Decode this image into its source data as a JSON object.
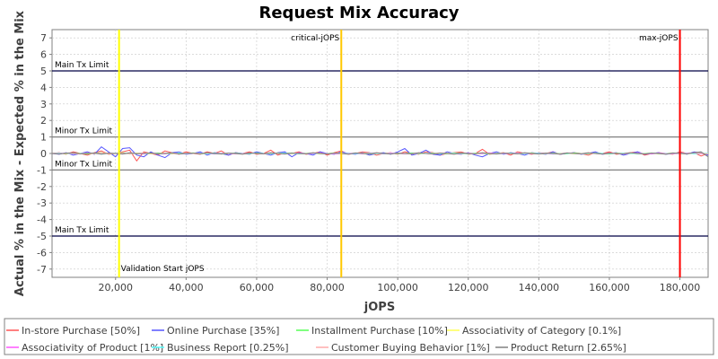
{
  "chart_data": {
    "type": "line",
    "title": "Request Mix Accuracy",
    "xlabel": "jOPS",
    "ylabel": "Actual % in the Mix - Expected % in the Mix",
    "xlim": [
      2000,
      188000
    ],
    "ylim": [
      -7.5,
      7.5
    ],
    "grid": true,
    "legend_position": "bottom",
    "x_ticks": [
      {
        "value": 20000,
        "label": "20,000"
      },
      {
        "value": 40000,
        "label": "40,000"
      },
      {
        "value": 60000,
        "label": "60,000"
      },
      {
        "value": 80000,
        "label": "80,000"
      },
      {
        "value": 100000,
        "label": "100,000"
      },
      {
        "value": 120000,
        "label": "120,000"
      },
      {
        "value": 140000,
        "label": "140,000"
      },
      {
        "value": 160000,
        "label": "160,000"
      },
      {
        "value": 180000,
        "label": "180,000"
      }
    ],
    "y_ticks": [
      {
        "value": 7,
        "label": "7"
      },
      {
        "value": 6,
        "label": "6"
      },
      {
        "value": 5,
        "label": "5"
      },
      {
        "value": 4,
        "label": "4"
      },
      {
        "value": 3,
        "label": "3"
      },
      {
        "value": 2,
        "label": "2"
      },
      {
        "value": 1,
        "label": "1"
      },
      {
        "value": 0,
        "label": "0"
      },
      {
        "value": -1,
        "label": "-1"
      },
      {
        "value": -2,
        "label": "-2"
      },
      {
        "value": -3,
        "label": "-3"
      },
      {
        "value": -4,
        "label": "-4"
      },
      {
        "value": -5,
        "label": "-5"
      },
      {
        "value": -6,
        "label": "-6"
      },
      {
        "value": -7,
        "label": "-7"
      }
    ],
    "horizontal_markers": [
      {
        "y": 5,
        "label": "Main Tx Limit",
        "color": "#000044",
        "label_side": "above"
      },
      {
        "y": 1,
        "label": "Minor Tx Limit",
        "color": "#808080",
        "label_side": "above"
      },
      {
        "y": -1,
        "label": "Minor Tx Limit",
        "color": "#808080",
        "label_side": "above"
      },
      {
        "y": -5,
        "label": "Main Tx Limit",
        "color": "#000044",
        "label_side": "above"
      }
    ],
    "vertical_markers": [
      {
        "x": 21000,
        "label": "Validation Start jOPS",
        "color": "#ffff00",
        "label_pos": "bottom"
      },
      {
        "x": 84000,
        "label": "critical-jOPS",
        "color": "#ffc800",
        "label_pos": "top"
      },
      {
        "x": 180000,
        "label": "max-jOPS",
        "color": "#ff0000",
        "label_pos": "top"
      }
    ],
    "x": [
      2000,
      4000,
      6000,
      8000,
      10000,
      12000,
      14000,
      16000,
      18000,
      20000,
      22000,
      24000,
      26000,
      28000,
      30000,
      32000,
      34000,
      36000,
      38000,
      40000,
      42000,
      44000,
      46000,
      48000,
      50000,
      52000,
      54000,
      56000,
      58000,
      60000,
      62000,
      64000,
      66000,
      68000,
      70000,
      72000,
      74000,
      76000,
      78000,
      80000,
      82000,
      84000,
      86000,
      88000,
      90000,
      92000,
      94000,
      96000,
      98000,
      100000,
      102000,
      104000,
      106000,
      108000,
      110000,
      112000,
      114000,
      116000,
      118000,
      120000,
      122000,
      124000,
      126000,
      128000,
      130000,
      132000,
      134000,
      136000,
      138000,
      140000,
      142000,
      144000,
      146000,
      148000,
      150000,
      152000,
      154000,
      156000,
      158000,
      160000,
      162000,
      164000,
      166000,
      168000,
      170000,
      172000,
      174000,
      176000,
      178000,
      180000,
      182000,
      184000,
      186000,
      188000
    ],
    "series": [
      {
        "name": "In-store Purchase [50%]",
        "color": "#ff5555",
        "values": [
          0.0,
          0.05,
          -0.05,
          0.1,
          0.0,
          -0.1,
          0.05,
          0.15,
          -0.05,
          0.0,
          0.1,
          0.2,
          -0.45,
          0.1,
          0.0,
          -0.1,
          0.15,
          0.05,
          -0.05,
          0.1,
          0.0,
          -0.05,
          0.1,
          0.0,
          0.15,
          -0.1,
          0.05,
          0.0,
          0.1,
          -0.05,
          0.0,
          0.2,
          -0.1,
          0.05,
          0.0,
          0.1,
          -0.05,
          0.0,
          0.1,
          -0.1,
          0.05,
          0.15,
          -0.05,
          0.0,
          0.1,
          0.05,
          -0.1,
          0.0,
          0.05,
          -0.05,
          0.1,
          0.0,
          -0.05,
          0.1,
          0.05,
          -0.1,
          0.0,
          0.05,
          0.1,
          -0.05,
          0.0,
          0.25,
          -0.05,
          0.0,
          0.05,
          -0.1,
          0.1,
          0.0,
          -0.05,
          0.05,
          0.0,
          0.1,
          -0.05,
          0.0,
          0.05,
          0.0,
          -0.1,
          0.05,
          0.0,
          0.1,
          -0.05,
          0.0,
          0.05,
          0.1,
          -0.1,
          0.0,
          0.05,
          0.0,
          -0.05,
          0.1,
          0.0,
          0.05,
          -0.15,
          0.0
        ]
      },
      {
        "name": "Online Purchase [35%]",
        "color": "#5555ff",
        "values": [
          0.0,
          -0.05,
          0.05,
          -0.1,
          0.0,
          0.1,
          -0.05,
          0.4,
          0.1,
          -0.2,
          0.3,
          0.35,
          -0.1,
          -0.2,
          0.1,
          -0.1,
          -0.25,
          0.05,
          0.1,
          -0.05,
          0.0,
          0.1,
          -0.1,
          0.05,
          0.0,
          -0.1,
          0.05,
          0.0,
          -0.05,
          0.1,
          0.0,
          -0.1,
          0.05,
          0.1,
          -0.2,
          0.05,
          0.0,
          -0.1,
          0.1,
          0.0,
          -0.05,
          0.1,
          0.0,
          -0.05,
          0.05,
          -0.1,
          0.0,
          0.05,
          -0.05,
          0.1,
          0.3,
          -0.1,
          0.0,
          0.2,
          -0.05,
          -0.1,
          0.1,
          0.0,
          -0.05,
          0.05,
          -0.1,
          -0.2,
          0.0,
          0.1,
          -0.05,
          0.05,
          0.0,
          -0.1,
          0.05,
          0.0,
          -0.05,
          0.1,
          -0.05,
          0.0,
          0.05,
          -0.05,
          0.0,
          0.1,
          -0.05,
          0.0,
          0.05,
          -0.1,
          0.0,
          0.1,
          -0.05,
          0.0,
          0.05,
          -0.05,
          0.0,
          0.05,
          -0.05,
          0.1,
          0.05,
          -0.1
        ]
      },
      {
        "name": "Installment Purchase [10%]",
        "color": "#55ff55",
        "values": [
          0.0,
          0.02,
          -0.02,
          0.03,
          0.0,
          -0.03,
          0.02,
          0.05,
          -0.02,
          0.0,
          0.05,
          -0.03,
          0.02,
          0.0,
          -0.02,
          0.03,
          0.0,
          -0.02,
          0.02,
          0.0,
          0.03,
          -0.02,
          0.0,
          0.02,
          -0.03,
          0.0,
          0.02,
          0.0,
          -0.02,
          0.03,
          0.0,
          -0.02,
          0.02,
          0.0,
          0.03,
          -0.02,
          0.0,
          0.02,
          -0.02,
          0.0,
          0.03,
          0.0,
          -0.02,
          0.02,
          0.0,
          -0.03,
          0.02,
          0.0,
          0.02,
          -0.02,
          0.0,
          0.03,
          -0.02,
          0.0,
          0.02,
          0.0,
          -0.02,
          0.03,
          0.0,
          -0.02,
          0.02,
          0.0,
          -0.03,
          0.02,
          0.0,
          0.02,
          -0.02,
          0.0,
          0.03,
          -0.02,
          0.0,
          0.02,
          0.0,
          -0.02,
          0.03,
          0.0,
          -0.02,
          0.02,
          0.0,
          -0.03,
          0.02,
          0.0,
          0.02,
          -0.02,
          0.0,
          0.03,
          -0.02,
          0.0,
          0.02,
          0.0,
          -0.02,
          0.03,
          0.0,
          -0.02
        ]
      },
      {
        "name": "Associativity of Category [0.1%]",
        "color": "#ffff55",
        "values": [
          0.0,
          0.01,
          -0.01,
          0.0,
          0.01,
          0.0,
          -0.01,
          0.0,
          0.01,
          0.0,
          -0.01,
          0.0,
          0.01,
          0.0,
          -0.01,
          0.0,
          0.01,
          0.0,
          -0.01,
          0.0,
          0.01,
          0.0,
          -0.01,
          0.0,
          0.01,
          0.0,
          -0.01,
          0.0,
          0.01,
          0.0,
          -0.01,
          0.0,
          0.01,
          0.0,
          -0.01,
          0.0,
          0.01,
          0.0,
          -0.01,
          0.0,
          0.01,
          0.0,
          -0.01,
          0.0,
          0.01,
          0.0,
          -0.01,
          0.0,
          0.01,
          0.0,
          -0.01,
          0.0,
          0.01,
          0.0,
          -0.01,
          0.0,
          0.01,
          0.0,
          -0.01,
          0.0,
          0.01,
          0.0,
          -0.01,
          0.0,
          0.01,
          0.0,
          -0.01,
          0.0,
          0.01,
          0.0,
          -0.01,
          0.0,
          0.01,
          0.0,
          -0.01,
          0.0,
          0.01,
          0.0,
          -0.01,
          0.0,
          0.01,
          0.0,
          -0.01,
          0.0,
          0.01,
          0.0,
          -0.01,
          0.0,
          0.01,
          0.0,
          -0.01,
          0.0,
          0.01,
          0.0
        ]
      },
      {
        "name": "Associativity of Product [1%]",
        "color": "#ff55ff",
        "values": [
          0.0,
          0.02,
          0.0,
          -0.02,
          0.0,
          0.03,
          0.0,
          -0.02,
          0.02,
          0.0,
          -0.03,
          0.02,
          0.0,
          -0.02,
          0.02,
          0.0,
          -0.02,
          0.03,
          0.0,
          -0.02,
          0.0,
          0.02,
          0.0,
          -0.03,
          0.02,
          0.0,
          -0.02,
          0.0,
          0.02,
          0.0,
          -0.02,
          0.03,
          0.0,
          -0.02,
          0.0,
          0.02,
          0.0,
          -0.02,
          0.02,
          0.0,
          -0.03,
          0.0,
          0.02,
          0.0,
          -0.02,
          0.02,
          0.0,
          -0.02,
          0.03,
          0.0,
          -0.02,
          0.0,
          0.02,
          0.0,
          -0.03,
          0.02,
          0.0,
          -0.02,
          0.0,
          0.02,
          0.0,
          -0.02,
          0.03,
          0.0,
          -0.02,
          0.0,
          0.02,
          0.0,
          -0.02,
          0.02,
          0.0,
          -0.03,
          0.0,
          0.02,
          0.0,
          -0.02,
          0.02,
          0.0,
          -0.02,
          0.03,
          0.0,
          -0.02,
          0.0,
          0.02,
          0.0,
          -0.03,
          0.02,
          0.0,
          -0.02,
          0.0,
          0.02,
          0.0,
          -0.02,
          0.0
        ]
      },
      {
        "name": "Business Report [0.25%]",
        "color": "#55ffff",
        "values": [
          0.0,
          0.01,
          0.0,
          -0.01,
          0.0,
          0.01,
          0.0,
          -0.01,
          0.0,
          0.01,
          0.0,
          -0.01,
          0.0,
          0.01,
          0.0,
          -0.01,
          0.0,
          0.01,
          0.0,
          -0.01,
          0.0,
          0.01,
          0.0,
          -0.01,
          0.0,
          0.01,
          0.0,
          -0.01,
          0.0,
          0.01,
          0.0,
          -0.01,
          0.0,
          0.01,
          0.0,
          -0.01,
          0.0,
          0.01,
          0.0,
          -0.01,
          0.0,
          0.01,
          0.0,
          -0.01,
          0.0,
          0.01,
          0.0,
          -0.01,
          0.0,
          0.01,
          0.0,
          -0.01,
          0.0,
          0.01,
          0.0,
          -0.01,
          0.0,
          0.01,
          0.0,
          -0.01,
          0.0,
          0.01,
          0.0,
          -0.01,
          0.0,
          0.01,
          0.0,
          -0.01,
          0.0,
          0.01,
          0.0,
          -0.01,
          0.0,
          0.01,
          0.0,
          -0.01,
          0.0,
          0.01,
          0.0,
          -0.01,
          0.0,
          0.01,
          0.0,
          -0.01,
          0.0,
          0.01,
          0.0,
          -0.01,
          0.0,
          0.01,
          0.0,
          -0.01,
          0.0,
          0.01
        ]
      },
      {
        "name": "Customer Buying Behavior [1%]",
        "color": "#ffaaaa",
        "values": [
          0.0,
          -0.02,
          0.02,
          0.0,
          -0.03,
          0.02,
          0.0,
          0.03,
          -0.02,
          0.0,
          0.02,
          -0.02,
          0.0,
          0.03,
          0.0,
          -0.02,
          0.02,
          0.0,
          -0.03,
          0.02,
          0.0,
          -0.02,
          0.03,
          0.0,
          -0.02,
          0.02,
          0.0,
          -0.03,
          0.02,
          0.0,
          -0.02,
          0.02,
          0.0,
          -0.03,
          0.02,
          0.0,
          -0.02,
          0.03,
          0.0,
          -0.02,
          0.02,
          0.0,
          -0.03,
          0.02,
          0.0,
          -0.02,
          0.03,
          0.0,
          -0.02,
          0.02,
          0.0,
          -0.03,
          0.02,
          0.0,
          -0.02,
          0.03,
          0.0,
          -0.02,
          0.02,
          0.0,
          -0.03,
          0.02,
          0.0,
          -0.02,
          0.03,
          0.0,
          -0.02,
          0.02,
          0.0,
          -0.03,
          0.02,
          0.0,
          -0.02,
          0.03,
          0.0,
          -0.02,
          0.02,
          0.0,
          -0.03,
          0.02,
          0.0,
          -0.02,
          0.03,
          0.0,
          -0.02,
          0.02,
          0.0,
          -0.03,
          0.02,
          0.0,
          -0.02,
          0.03,
          0.0,
          -0.02
        ]
      },
      {
        "name": "Product Return [2.65%]",
        "color": "#808080",
        "values": [
          0.0,
          -0.03,
          0.02,
          0.05,
          -0.02,
          0.0,
          0.03,
          -0.05,
          0.02,
          0.0,
          -0.03,
          0.05,
          -0.02,
          0.0,
          0.03,
          -0.02,
          0.0,
          0.05,
          -0.03,
          0.0,
          0.02,
          -0.02,
          0.05,
          0.0,
          -0.03,
          0.02,
          0.0,
          -0.05,
          0.03,
          0.0,
          -0.02,
          0.05,
          0.0,
          -0.03,
          0.02,
          0.0,
          -0.02,
          0.05,
          0.0,
          -0.03,
          0.02,
          0.0,
          -0.05,
          0.03,
          0.0,
          -0.02,
          0.05,
          0.0,
          -0.03,
          0.02,
          0.0,
          -0.02,
          0.05,
          0.0,
          -0.03,
          0.02,
          0.0,
          -0.05,
          0.03,
          0.0,
          -0.02,
          0.05,
          0.0,
          -0.03,
          0.02,
          0.0,
          -0.02,
          0.05,
          0.0,
          -0.03,
          0.02,
          0.0,
          -0.05,
          0.03,
          0.0,
          -0.02,
          0.05,
          0.0,
          -0.03,
          0.02,
          0.0,
          -0.02,
          0.05,
          0.0,
          -0.03,
          0.02,
          0.0,
          -0.05,
          0.03,
          0.0,
          -0.02,
          0.05,
          0.1,
          -0.2
        ]
      }
    ]
  }
}
